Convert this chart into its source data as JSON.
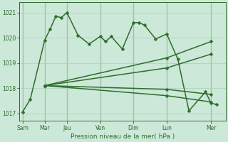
{
  "background_color": "#cce8d8",
  "grid_color": "#aacfba",
  "line_color": "#2d6e2d",
  "ylabel": "Pression niveau de la mer( hPa )",
  "ylim": [
    1016.7,
    1021.4
  ],
  "yticks": [
    1017,
    1018,
    1019,
    1020,
    1021
  ],
  "day_labels": [
    "Sam",
    "Mar",
    "Jeu",
    "Ven",
    "Dim",
    "Lun",
    "Mer"
  ],
  "day_positions": [
    0,
    2,
    4,
    7,
    10,
    13,
    17
  ],
  "xlim": [
    -0.3,
    18.3
  ],
  "lines": [
    {
      "x": [
        0.0,
        0.7,
        2.0,
        2.5,
        3.0,
        3.5,
        4.0,
        5.0,
        6.0,
        7.0,
        7.5,
        8.0,
        9.0,
        10.0,
        10.5,
        11.0,
        12.0,
        13.0,
        14.0,
        15.0,
        16.5,
        17.0,
        17.5
      ],
      "y": [
        1017.05,
        1017.55,
        1019.9,
        1020.35,
        1020.85,
        1020.8,
        1021.0,
        1020.1,
        1019.75,
        1020.05,
        1019.85,
        1020.05,
        1019.55,
        1020.6,
        1020.6,
        1020.5,
        1019.95,
        1020.15,
        1019.15,
        1017.1,
        1017.85,
        1017.4,
        1017.35
      ]
    },
    {
      "x": [
        2.0,
        13.0,
        17.0
      ],
      "y": [
        1018.1,
        1019.2,
        1019.85
      ]
    },
    {
      "x": [
        2.0,
        13.0,
        17.0
      ],
      "y": [
        1018.1,
        1018.8,
        1019.35
      ]
    },
    {
      "x": [
        2.0,
        13.0,
        17.0
      ],
      "y": [
        1018.1,
        1017.95,
        1017.75
      ]
    },
    {
      "x": [
        2.0,
        13.0,
        17.0
      ],
      "y": [
        1018.1,
        1017.7,
        1017.45
      ]
    }
  ],
  "markers": {
    "style": "D",
    "size": 2.5,
    "lw": 1.1
  }
}
